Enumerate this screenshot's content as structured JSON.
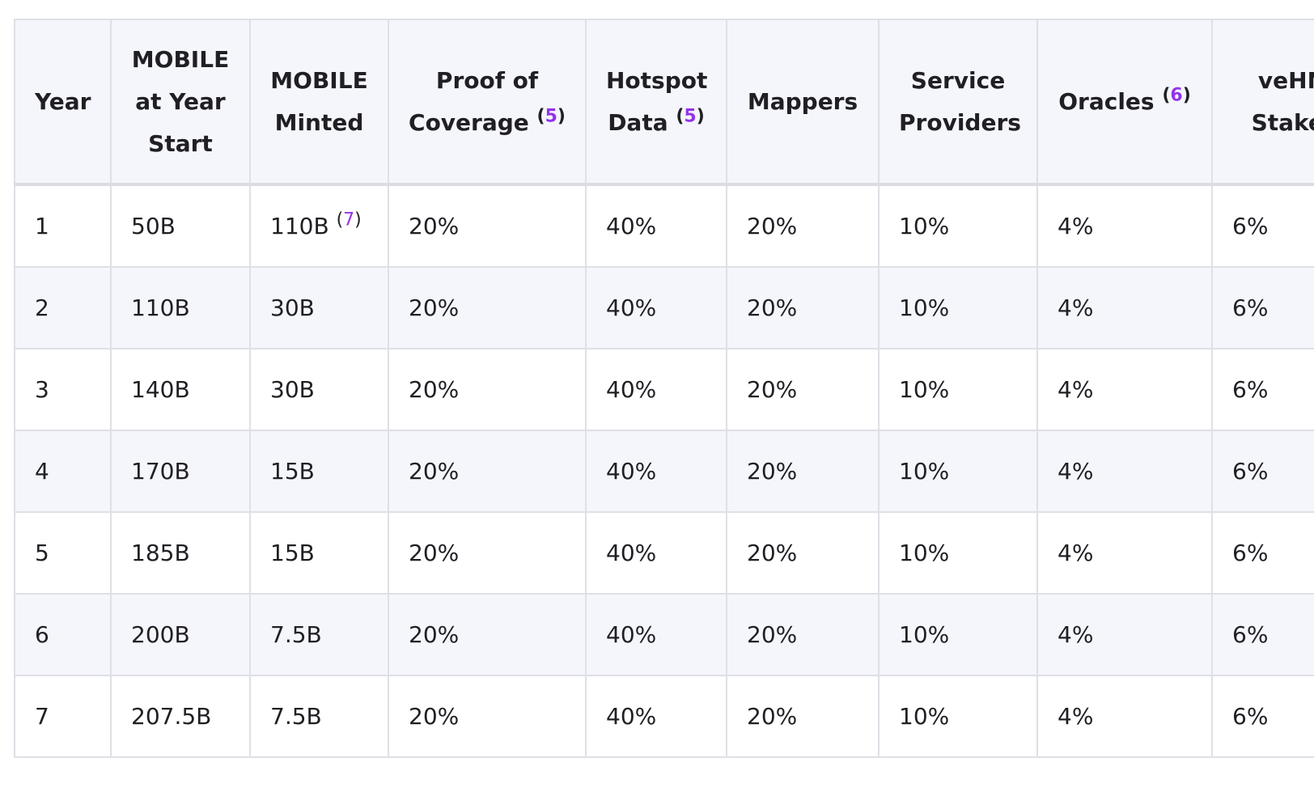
{
  "table": {
    "headers": [
      {
        "text": "Year"
      },
      {
        "text": "MOBILE at Year Start"
      },
      {
        "text": "MOBILE Minted"
      },
      {
        "text": "Proof of Coverage",
        "ref": {
          "open": "(",
          "num": "5",
          "close": ")"
        }
      },
      {
        "text": "Hotspot Data",
        "ref": {
          "open": "(",
          "num": "5",
          "close": ")"
        }
      },
      {
        "text": "Mappers"
      },
      {
        "text": "Service Providers"
      },
      {
        "text": "Oracles",
        "ref": {
          "open": "(",
          "num": "6",
          "close": ")"
        }
      },
      {
        "text": "veHNT Stakers"
      }
    ],
    "rows": [
      [
        {
          "text": "1"
        },
        {
          "text": "50B"
        },
        {
          "text": "110B",
          "ref": {
            "open": "(",
            "num": "7",
            "close": ")"
          }
        },
        {
          "text": "20%"
        },
        {
          "text": "40%"
        },
        {
          "text": "20%"
        },
        {
          "text": "10%"
        },
        {
          "text": "4%"
        },
        {
          "text": "6%"
        }
      ],
      [
        {
          "text": "2"
        },
        {
          "text": "110B"
        },
        {
          "text": "30B"
        },
        {
          "text": "20%"
        },
        {
          "text": "40%"
        },
        {
          "text": "20%"
        },
        {
          "text": "10%"
        },
        {
          "text": "4%"
        },
        {
          "text": "6%"
        }
      ],
      [
        {
          "text": "3"
        },
        {
          "text": "140B"
        },
        {
          "text": "30B"
        },
        {
          "text": "20%"
        },
        {
          "text": "40%"
        },
        {
          "text": "20%"
        },
        {
          "text": "10%"
        },
        {
          "text": "4%"
        },
        {
          "text": "6%"
        }
      ],
      [
        {
          "text": "4"
        },
        {
          "text": "170B"
        },
        {
          "text": "15B"
        },
        {
          "text": "20%"
        },
        {
          "text": "40%"
        },
        {
          "text": "20%"
        },
        {
          "text": "10%"
        },
        {
          "text": "4%"
        },
        {
          "text": "6%"
        }
      ],
      [
        {
          "text": "5"
        },
        {
          "text": "185B"
        },
        {
          "text": "15B"
        },
        {
          "text": "20%"
        },
        {
          "text": "40%"
        },
        {
          "text": "20%"
        },
        {
          "text": "10%"
        },
        {
          "text": "4%"
        },
        {
          "text": "6%"
        }
      ],
      [
        {
          "text": "6"
        },
        {
          "text": "200B"
        },
        {
          "text": "7.5B"
        },
        {
          "text": "20%"
        },
        {
          "text": "40%"
        },
        {
          "text": "20%"
        },
        {
          "text": "10%"
        },
        {
          "text": "4%"
        },
        {
          "text": "6%"
        }
      ],
      [
        {
          "text": "7"
        },
        {
          "text": "207.5B"
        },
        {
          "text": "7.5B"
        },
        {
          "text": "20%"
        },
        {
          "text": "40%"
        },
        {
          "text": "20%"
        },
        {
          "text": "10%"
        },
        {
          "text": "4%"
        },
        {
          "text": "6%"
        }
      ]
    ]
  }
}
